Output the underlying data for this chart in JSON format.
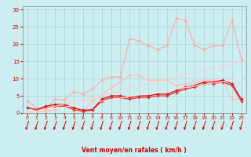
{
  "x": [
    0,
    1,
    2,
    3,
    4,
    5,
    6,
    7,
    8,
    9,
    10,
    11,
    12,
    13,
    14,
    15,
    16,
    17,
    18,
    19,
    20,
    21,
    22,
    23
  ],
  "series": [
    {
      "color": "#ffaaaa",
      "alpha": 1.0,
      "linewidth": 0.8,
      "marker": "D",
      "markersize": 1.8,
      "values": [
        3.5,
        1.5,
        1.2,
        4.0,
        3.8,
        6.2,
        5.5,
        7.0,
        9.5,
        10.5,
        10.5,
        21.5,
        21.0,
        19.5,
        18.5,
        19.5,
        27.5,
        27.0,
        19.5,
        18.5,
        19.5,
        19.5,
        27.0,
        15.5
      ]
    },
    {
      "color": "#ffbbbb",
      "alpha": 1.0,
      "linewidth": 0.8,
      "marker": "D",
      "markersize": 1.8,
      "values": [
        0.0,
        0.5,
        0.5,
        1.0,
        2.5,
        1.0,
        0.5,
        3.5,
        5.0,
        7.5,
        9.0,
        11.0,
        11.0,
        9.5,
        9.5,
        9.5,
        8.0,
        8.5,
        9.0,
        9.5,
        9.5,
        9.5,
        4.0,
        4.0
      ]
    },
    {
      "color": "#cc1111",
      "alpha": 1.0,
      "linewidth": 0.9,
      "marker": "D",
      "markersize": 1.8,
      "values": [
        1.5,
        1.0,
        2.0,
        2.5,
        2.5,
        1.5,
        0.8,
        1.0,
        4.0,
        5.0,
        5.0,
        4.5,
        5.0,
        5.0,
        5.5,
        5.5,
        6.5,
        7.5,
        8.0,
        9.0,
        9.0,
        9.5,
        8.5,
        4.0
      ]
    },
    {
      "color": "#ee3333",
      "alpha": 1.0,
      "linewidth": 0.9,
      "marker": "D",
      "markersize": 1.8,
      "values": [
        1.5,
        1.0,
        1.5,
        2.0,
        2.0,
        1.0,
        0.5,
        0.8,
        3.5,
        4.5,
        4.5,
        4.0,
        4.5,
        4.5,
        5.0,
        5.0,
        6.0,
        7.0,
        7.5,
        8.5,
        8.5,
        9.0,
        8.0,
        3.5
      ]
    },
    {
      "color": "#ffdddd",
      "alpha": 1.0,
      "linewidth": 0.8,
      "marker": null,
      "markersize": 0,
      "values": [
        0.0,
        0.43,
        0.87,
        1.3,
        1.74,
        2.17,
        2.61,
        3.04,
        3.48,
        3.91,
        4.35,
        4.78,
        5.22,
        5.65,
        6.09,
        6.52,
        6.96,
        7.39,
        7.83,
        8.26,
        8.7,
        9.13,
        9.57,
        10.0
      ]
    },
    {
      "color": "#ffcccc",
      "alpha": 1.0,
      "linewidth": 0.8,
      "marker": null,
      "markersize": 0,
      "values": [
        0.0,
        0.65,
        1.3,
        1.96,
        2.61,
        3.26,
        3.91,
        4.57,
        5.22,
        5.87,
        6.52,
        7.17,
        7.83,
        8.48,
        9.13,
        9.78,
        10.43,
        11.09,
        11.74,
        12.39,
        13.04,
        13.7,
        14.35,
        15.0
      ]
    }
  ],
  "xlabel": "Vent moyen/en rafales ( km/h )",
  "xlim": [
    -0.5,
    23.5
  ],
  "ylim": [
    0,
    31
  ],
  "yticks": [
    0,
    5,
    10,
    15,
    20,
    25,
    30
  ],
  "xticks": [
    0,
    1,
    2,
    3,
    4,
    5,
    6,
    7,
    8,
    9,
    10,
    11,
    12,
    13,
    14,
    15,
    16,
    17,
    18,
    19,
    20,
    21,
    22,
    23
  ],
  "background_color": "#cceef0",
  "grid_color": "#aacccc",
  "tick_color": "#cc0000",
  "label_color": "#cc0000",
  "arrow_color": "#cc0000"
}
